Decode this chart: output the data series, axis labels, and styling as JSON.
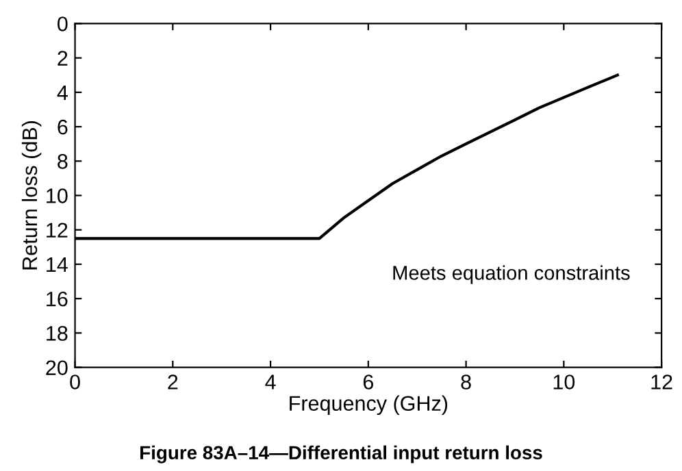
{
  "chart_data": {
    "type": "line",
    "title": "Figure 83A–14—Differential input return loss",
    "xlabel": "Frequency (GHz)",
    "ylabel": "Return loss (dB)",
    "x": [
      0,
      5,
      5.5,
      6,
      6.5,
      7,
      7.5,
      8,
      8.5,
      9,
      9.5,
      10,
      10.5,
      11.1
    ],
    "series": [
      {
        "color": "#000000",
        "values": [
          12.5,
          12.5,
          11.3,
          10.3,
          9.3,
          8.5,
          7.7,
          7.0,
          6.3,
          5.6,
          4.9,
          4.3,
          3.7,
          3.0
        ]
      }
    ],
    "xlim": [
      0,
      12
    ],
    "xticks": [
      0,
      2,
      4,
      6,
      8,
      10,
      12
    ],
    "ylim": [
      20,
      0
    ],
    "yticks": [
      0,
      2,
      4,
      6,
      8,
      10,
      12,
      14,
      16,
      18,
      20
    ],
    "grid": false,
    "legend": false,
    "marker": "none",
    "line_style": "solid",
    "annotations": [
      "Meets equation constraints"
    ]
  }
}
